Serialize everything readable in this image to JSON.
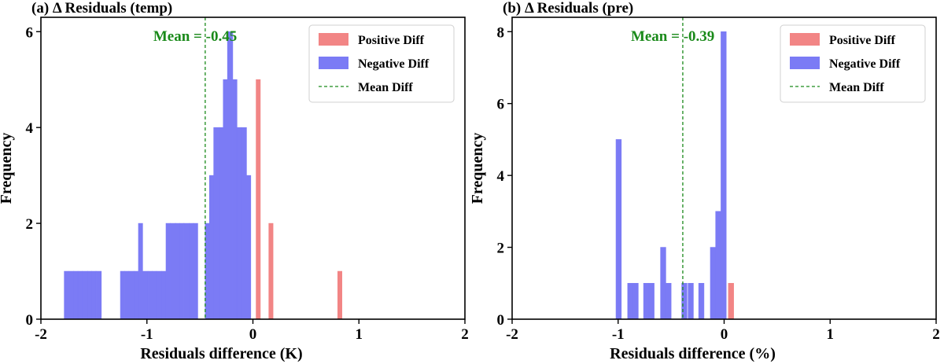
{
  "chart_data": [
    {
      "type": "histogram",
      "title": "(a) Δ Residuals (temp)",
      "xlabel": "Residuals difference (K)",
      "ylabel": "Frequency",
      "xlim": [
        -2,
        2
      ],
      "ylim": [
        0,
        6.3
      ],
      "xticks": [
        -2,
        -1,
        0,
        1,
        2
      ],
      "yticks": [
        0,
        2,
        4,
        6
      ],
      "mean": -0.45,
      "mean_label": "Mean = -0.45",
      "series": [
        {
          "name": "Positive Diff",
          "color": "#f28585",
          "bins": [
            {
              "x0": 0.03,
              "x1": 0.07,
              "count": 5
            },
            {
              "x0": 0.15,
              "x1": 0.19,
              "count": 2
            },
            {
              "x0": 0.8,
              "x1": 0.84,
              "count": 1
            }
          ]
        },
        {
          "name": "Negative Diff",
          "color": "#7b7bf5",
          "bins": [
            {
              "x0": -1.78,
              "x1": -1.74,
              "count": 1
            },
            {
              "x0": -1.74,
              "x1": -1.69,
              "count": 1
            },
            {
              "x0": -1.69,
              "x1": -1.65,
              "count": 1
            },
            {
              "x0": -1.65,
              "x1": -1.61,
              "count": 1
            },
            {
              "x0": -1.61,
              "x1": -1.56,
              "count": 1
            },
            {
              "x0": -1.56,
              "x1": -1.52,
              "count": 1
            },
            {
              "x0": -1.52,
              "x1": -1.48,
              "count": 1
            },
            {
              "x0": -1.48,
              "x1": -1.43,
              "count": 1
            },
            {
              "x0": -1.25,
              "x1": -1.21,
              "count": 1
            },
            {
              "x0": -1.21,
              "x1": -1.17,
              "count": 1
            },
            {
              "x0": -1.17,
              "x1": -1.12,
              "count": 1
            },
            {
              "x0": -1.12,
              "x1": -1.08,
              "count": 1
            },
            {
              "x0": -1.08,
              "x1": -1.04,
              "count": 2
            },
            {
              "x0": -1.04,
              "x1": -0.99,
              "count": 1
            },
            {
              "x0": -0.99,
              "x1": -0.95,
              "count": 1
            },
            {
              "x0": -0.95,
              "x1": -0.91,
              "count": 1
            },
            {
              "x0": -0.91,
              "x1": -0.86,
              "count": 1
            },
            {
              "x0": -0.86,
              "x1": -0.82,
              "count": 1
            },
            {
              "x0": -0.82,
              "x1": -0.78,
              "count": 2
            },
            {
              "x0": -0.78,
              "x1": -0.73,
              "count": 2
            },
            {
              "x0": -0.73,
              "x1": -0.69,
              "count": 2
            },
            {
              "x0": -0.69,
              "x1": -0.65,
              "count": 2
            },
            {
              "x0": -0.65,
              "x1": -0.6,
              "count": 2
            },
            {
              "x0": -0.6,
              "x1": -0.56,
              "count": 2
            },
            {
              "x0": -0.56,
              "x1": -0.52,
              "count": 2
            },
            {
              "x0": -0.45,
              "x1": -0.41,
              "count": 2
            },
            {
              "x0": -0.41,
              "x1": -0.37,
              "count": 3
            },
            {
              "x0": -0.37,
              "x1": -0.32,
              "count": 4
            },
            {
              "x0": -0.32,
              "x1": -0.28,
              "count": 4
            },
            {
              "x0": -0.28,
              "x1": -0.24,
              "count": 5
            },
            {
              "x0": -0.24,
              "x1": -0.19,
              "count": 6
            },
            {
              "x0": -0.19,
              "x1": -0.15,
              "count": 5
            },
            {
              "x0": -0.15,
              "x1": -0.11,
              "count": 4
            },
            {
              "x0": -0.11,
              "x1": -0.06,
              "count": 4
            },
            {
              "x0": -0.06,
              "x1": -0.02,
              "count": 3
            }
          ]
        }
      ],
      "legend": {
        "placement": "top-right",
        "entries": [
          {
            "label": "Positive Diff",
            "kind": "patch",
            "color": "#f28585"
          },
          {
            "label": "Negative Diff",
            "kind": "patch",
            "color": "#7b7bf5"
          },
          {
            "label": "Mean Diff",
            "kind": "dashed-line",
            "color": "#1a8a1a"
          }
        ]
      }
    },
    {
      "type": "histogram",
      "title": "(b) Δ Residuals (pre)",
      "xlabel": "Residuals difference (%)",
      "ylabel": "Frequency",
      "xlim": [
        -2,
        2
      ],
      "ylim": [
        0,
        8.4
      ],
      "xticks": [
        -2,
        -1,
        0,
        1,
        2
      ],
      "yticks": [
        0,
        2,
        4,
        6,
        8
      ],
      "mean": -0.39,
      "mean_label": "Mean = -0.39",
      "series": [
        {
          "name": "Positive Diff",
          "color": "#f28585",
          "bins": [
            {
              "x0": 0.04,
              "x1": 0.09,
              "count": 1
            }
          ]
        },
        {
          "name": "Negative Diff",
          "color": "#7b7bf5",
          "bins": [
            {
              "x0": -1.02,
              "x1": -0.97,
              "count": 5
            },
            {
              "x0": -0.91,
              "x1": -0.86,
              "count": 1
            },
            {
              "x0": -0.86,
              "x1": -0.81,
              "count": 1
            },
            {
              "x0": -0.76,
              "x1": -0.71,
              "count": 1
            },
            {
              "x0": -0.71,
              "x1": -0.66,
              "count": 1
            },
            {
              "x0": -0.6,
              "x1": -0.55,
              "count": 2
            },
            {
              "x0": -0.55,
              "x1": -0.5,
              "count": 1
            },
            {
              "x0": -0.4,
              "x1": -0.35,
              "count": 1
            },
            {
              "x0": -0.34,
              "x1": -0.29,
              "count": 1
            },
            {
              "x0": -0.24,
              "x1": -0.19,
              "count": 1
            },
            {
              "x0": -0.13,
              "x1": -0.08,
              "count": 2
            },
            {
              "x0": -0.08,
              "x1": -0.03,
              "count": 3
            },
            {
              "x0": -0.03,
              "x1": 0.02,
              "count": 8
            }
          ]
        }
      ],
      "legend": {
        "placement": "top-right",
        "entries": [
          {
            "label": "Positive Diff",
            "kind": "patch",
            "color": "#f28585"
          },
          {
            "label": "Negative Diff",
            "kind": "patch",
            "color": "#7b7bf5"
          },
          {
            "label": "Mean Diff",
            "kind": "dashed-line",
            "color": "#1a8a1a"
          }
        ]
      }
    }
  ]
}
